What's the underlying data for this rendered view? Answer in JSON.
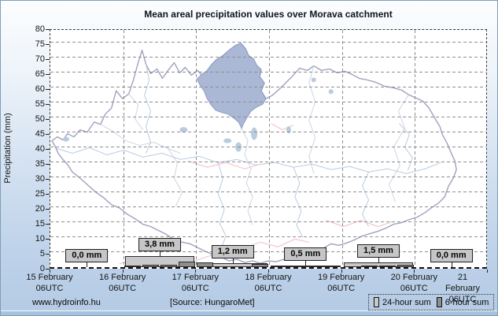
{
  "title": "Mean areal precipitation values over Morava catchment",
  "y_axis": {
    "label": "Precipitation (mm)"
  },
  "footer": {
    "site": "www.hydroinfo.hu",
    "source": "[Source: HungaroMet]"
  },
  "legend": {
    "items": [
      {
        "label": "24-hour sum",
        "color": "#c9c9c9"
      },
      {
        "label": "6-hour sum",
        "color": "#8e8e8e"
      }
    ]
  },
  "chart_data": {
    "type": "bar",
    "title": "Mean areal precipitation values over Morava catchment",
    "ylabel": "Precipitation (mm)",
    "ylim": [
      0,
      80
    ],
    "yticks": [
      0,
      5,
      10,
      15,
      20,
      25,
      30,
      35,
      40,
      45,
      50,
      55,
      60,
      65,
      70,
      75,
      80
    ],
    "grid": true,
    "legend_position": "bottom-right",
    "background": "location map of Morava catchment (highlighted)",
    "x_tick_labels": [
      "15 February\n06UTC",
      "16 February\n06UTC",
      "17 February\n06UTC",
      "18 February\n06UTC",
      "19 February\n06UTC",
      "20 February\n06UTC",
      "21 February\n06UTC"
    ],
    "series": [
      {
        "name": "24-hour sum",
        "color": "#c9c9c9",
        "values": [
          0.0,
          3.8,
          1.2,
          0.5,
          1.5,
          0.0
        ],
        "value_labels": [
          "0,0 mm",
          "3,8 mm",
          "1,2 mm",
          "0,5 mm",
          "1,5 mm",
          "0,0 mm"
        ]
      },
      {
        "name": "6-hour sum",
        "color": "#8e8e8e",
        "values_per_day": [
          [
            0,
            0,
            0,
            0
          ],
          [
            0.3,
            0.9,
            0.9,
            1.8
          ],
          [
            1.6,
            0,
            0,
            1.0
          ],
          [
            0.2,
            0.4,
            0.1,
            0
          ],
          [
            0.1,
            0.3,
            0.5,
            0.9
          ],
          [
            0,
            0,
            0,
            0
          ]
        ],
        "estimated_from_pixels": true
      }
    ],
    "map_region_fill_color": "#aab8d6"
  }
}
